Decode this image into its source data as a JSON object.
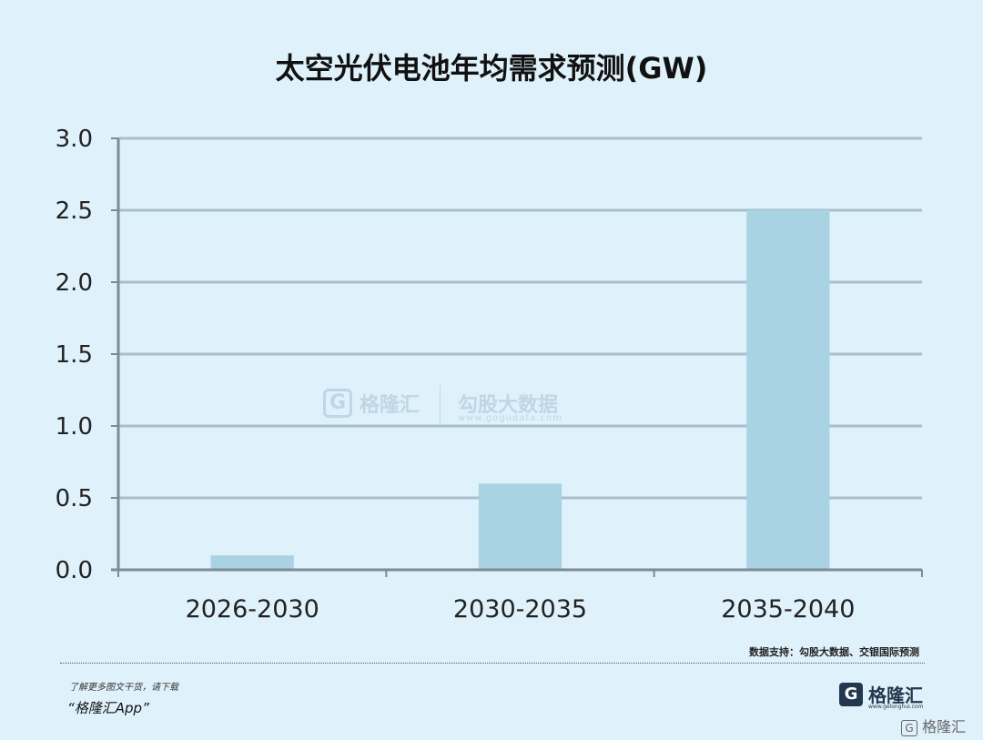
{
  "chart_data": {
    "type": "bar",
    "title": "太空光伏电池年均需求预测(GW)",
    "categories": [
      "2026-2030",
      "2030-2035",
      "2035-2040"
    ],
    "values": [
      0.1,
      0.6,
      2.5
    ],
    "ylim": [
      0,
      3.0
    ],
    "yticks": [
      "0.0",
      "0.5",
      "1.0",
      "1.5",
      "2.0",
      "2.5",
      "3.0"
    ],
    "grid": true,
    "bar_color": "#a9d3e3"
  },
  "watermark": {
    "badge": "G",
    "name": "格隆汇",
    "partner": "勾股大数据",
    "url": "www.gogudata.com"
  },
  "footer": {
    "source": "数据支持：勾股大数据、交银国际预测",
    "promo_line1": "了解更多图文干货，请下载",
    "promo_line2": "“格隆汇App”",
    "logo_badge": "G",
    "logo_name": "格隆汇",
    "logo_url": "www.gelonghui.com",
    "corner_badge": "G",
    "corner_text": "格隆汇"
  }
}
